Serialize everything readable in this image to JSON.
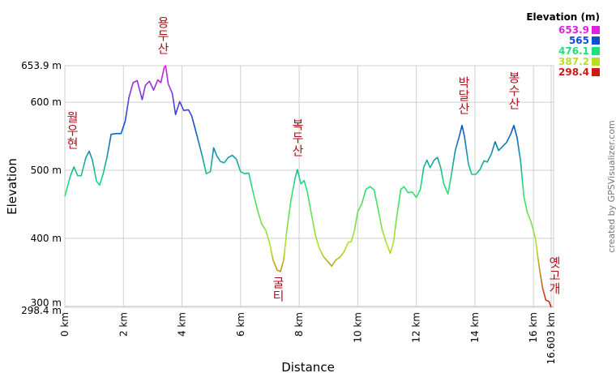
{
  "chart_data": {
    "type": "line",
    "xlabel": "Distance",
    "ylabel": "Elevation",
    "credit": "created by GPSVisualizer.com",
    "legend_title": "Elevation (m)",
    "color_scale": [
      {
        "value": 653.9,
        "color": "#e020e0"
      },
      {
        "value": 565.0,
        "color": "#0a50d0"
      },
      {
        "value": 476.1,
        "color": "#20e07a"
      },
      {
        "value": 387.2,
        "color": "#b8e020"
      },
      {
        "value": 298.4,
        "color": "#d01818"
      }
    ],
    "annotations": [
      "월우현",
      "용두산",
      "복두산",
      "굴티",
      "박달산",
      "봉수산",
      "옛고개"
    ],
    "xlim": [
      0,
      16.603
    ],
    "ylim": [
      298.4,
      653.9
    ],
    "xticks": [
      {
        "value": 0,
        "label": "0 km"
      },
      {
        "value": 2,
        "label": "2 km"
      },
      {
        "value": 4,
        "label": "4 km"
      },
      {
        "value": 6,
        "label": "6 km"
      },
      {
        "value": 8,
        "label": "8 km"
      },
      {
        "value": 10,
        "label": "10 km"
      },
      {
        "value": 12,
        "label": "12 km"
      },
      {
        "value": 14,
        "label": "14 km"
      },
      {
        "value": 16,
        "label": "16 km"
      },
      {
        "value": 16.603,
        "label": "16.603 km"
      }
    ],
    "yticks": [
      {
        "value": 298.4,
        "label": "298.4 m"
      },
      {
        "value": 300,
        "label": "300 m"
      },
      {
        "value": 400,
        "label": "400 m"
      },
      {
        "value": 500,
        "label": "500 m"
      },
      {
        "value": 600,
        "label": "600 m"
      },
      {
        "value": 653.9,
        "label": "653.9 m"
      }
    ],
    "grid": true,
    "x": [
      0,
      0.19,
      0.31,
      0.44,
      0.56,
      0.72,
      0.83,
      0.94,
      1.08,
      1.19,
      1.31,
      1.44,
      1.58,
      1.78,
      1.92,
      2.06,
      2.19,
      2.33,
      2.47,
      2.64,
      2.75,
      2.89,
      3.03,
      3.17,
      3.28,
      3.39,
      3.44,
      3.53,
      3.67,
      3.78,
      3.92,
      4.06,
      4.22,
      4.33,
      4.5,
      4.69,
      4.83,
      4.97,
      5.08,
      5.19,
      5.31,
      5.44,
      5.58,
      5.72,
      5.86,
      6.0,
      6.14,
      6.28,
      6.42,
      6.58,
      6.72,
      6.86,
      7.0,
      7.11,
      7.25,
      7.36,
      7.47,
      7.58,
      7.72,
      7.86,
      7.94,
      8.06,
      8.17,
      8.28,
      8.42,
      8.56,
      8.69,
      8.83,
      8.97,
      9.11,
      9.25,
      9.39,
      9.53,
      9.67,
      9.78,
      9.89,
      10.0,
      10.14,
      10.28,
      10.42,
      10.56,
      10.69,
      10.83,
      10.97,
      11.11,
      11.22,
      11.33,
      11.47,
      11.58,
      11.72,
      11.86,
      12.0,
      12.14,
      12.25,
      12.36,
      12.47,
      12.61,
      12.72,
      12.83,
      12.94,
      13.08,
      13.19,
      13.33,
      13.47,
      13.56,
      13.64,
      13.78,
      13.89,
      14.03,
      14.17,
      14.31,
      14.42,
      14.56,
      14.69,
      14.81,
      14.94,
      15.08,
      15.22,
      15.33,
      15.44,
      15.56,
      15.67,
      15.78,
      15.92,
      16.06,
      16.19,
      16.31,
      16.42,
      16.53,
      16.603
    ],
    "values": [
      462,
      492,
      505,
      492,
      492,
      519,
      528,
      515,
      484,
      478,
      495,
      519,
      553,
      554,
      554,
      572,
      607,
      629,
      632,
      604,
      625,
      631,
      618,
      633,
      629,
      651,
      653.9,
      627,
      613,
      582,
      601,
      588,
      589,
      580,
      553,
      521,
      495,
      498,
      533,
      521,
      513,
      511,
      519,
      522,
      516,
      498,
      495,
      496,
      469,
      441,
      421,
      412,
      391,
      368,
      353,
      351,
      368,
      412,
      456,
      488,
      501,
      480,
      485,
      468,
      435,
      404,
      385,
      373,
      366,
      359,
      368,
      372,
      380,
      394,
      395,
      412,
      439,
      451,
      472,
      476,
      471,
      444,
      413,
      394,
      378,
      394,
      431,
      472,
      476,
      467,
      468,
      460,
      472,
      504,
      515,
      504,
      515,
      519,
      504,
      480,
      465,
      492,
      529,
      551,
      566,
      551,
      509,
      494,
      494,
      501,
      514,
      512,
      524,
      542,
      529,
      535,
      541,
      553,
      566,
      548,
      513,
      462,
      439,
      424,
      401,
      359,
      327,
      309,
      307,
      298.4
    ]
  }
}
